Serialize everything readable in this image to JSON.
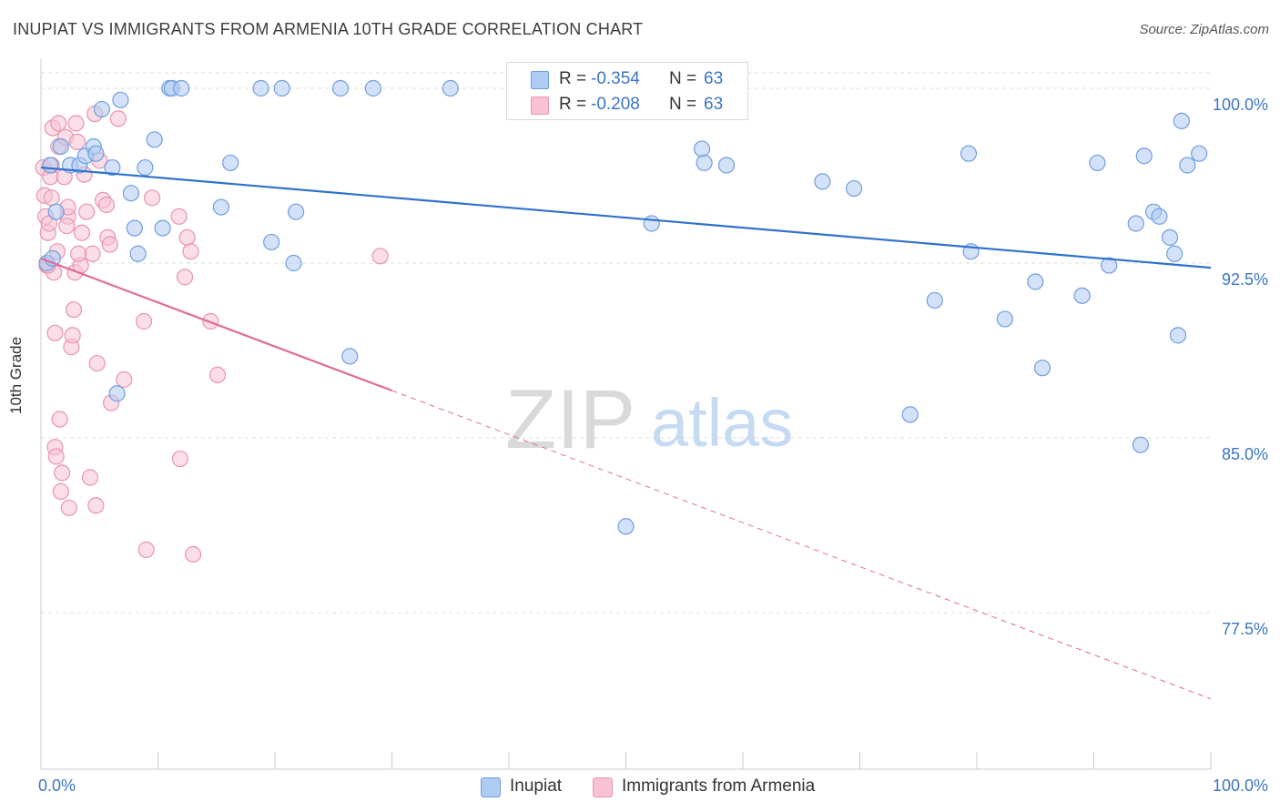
{
  "title": "INUPIAT VS IMMIGRANTS FROM ARMENIA 10TH GRADE CORRELATION CHART",
  "source": "Source: ZipAtlas.com",
  "watermark": {
    "zip": "ZIP",
    "atlas": "atlas"
  },
  "colors": {
    "blue_fill": "#aecbf3",
    "blue_stroke": "#6f9ee0",
    "blue_line": "#2f72cc",
    "pink_fill": "#f8c2d2",
    "pink_stroke": "#e894b0",
    "pink_line": "#e06a95",
    "axis_text": "#3a75c4",
    "grid": "#dddddd"
  },
  "stats": [
    {
      "r_label": "R =",
      "r_value": "-0.354",
      "n_label": "N =",
      "n_value": "63"
    },
    {
      "r_label": "R =",
      "r_value": "-0.208",
      "n_label": "N =",
      "n_value": "63"
    }
  ],
  "chart_data": {
    "type": "scatter",
    "title": "INUPIAT VS IMMIGRANTS FROM ARMENIA 10TH GRADE CORRELATION CHART",
    "xlabel": "",
    "ylabel": "10th Grade",
    "xlim": [
      0,
      100
    ],
    "ylim": [
      70,
      100.7
    ],
    "x_tick_labels": [
      "0.0%",
      "100.0%"
    ],
    "y_ticks": [
      77.5,
      85.0,
      92.5,
      100.0
    ],
    "y_tick_labels": [
      "77.5%",
      "85.0%",
      "92.5%",
      "100.0%"
    ],
    "grid": true,
    "legend_position": "bottom",
    "series": [
      {
        "name": "Inupiat",
        "trend": {
          "x": [
            0,
            100
          ],
          "y": [
            96.6,
            92.3
          ],
          "dashed_from": null
        },
        "points": [
          [
            0.5,
            92.5
          ],
          [
            0.8,
            96.7
          ],
          [
            1.3,
            94.7
          ],
          [
            1.7,
            97.5
          ],
          [
            2.5,
            96.7
          ],
          [
            3.3,
            96.7
          ],
          [
            3.8,
            97.1
          ],
          [
            4.5,
            97.5
          ],
          [
            4.7,
            97.2
          ],
          [
            5.2,
            99.1
          ],
          [
            6.1,
            96.6
          ],
          [
            6.5,
            86.9
          ],
          [
            6.8,
            99.5
          ],
          [
            7.7,
            95.5
          ],
          [
            8.0,
            94.0
          ],
          [
            8.3,
            92.9
          ],
          [
            8.9,
            96.6
          ],
          [
            9.7,
            97.8
          ],
          [
            10.4,
            94.0
          ],
          [
            11.0,
            100.0
          ],
          [
            11.2,
            100.0
          ],
          [
            16.2,
            96.8
          ],
          [
            15.4,
            94.9
          ],
          [
            18.8,
            100.0
          ],
          [
            19.7,
            93.4
          ],
          [
            20.6,
            100.0
          ],
          [
            21.6,
            92.5
          ],
          [
            21.8,
            94.7
          ],
          [
            25.6,
            100.0
          ],
          [
            26.4,
            88.5
          ],
          [
            28.4,
            100.0
          ],
          [
            35.0,
            100.0
          ],
          [
            47.3,
            100.0
          ],
          [
            50.0,
            81.2
          ],
          [
            52.2,
            94.2
          ],
          [
            56.5,
            97.4
          ],
          [
            56.7,
            96.8
          ],
          [
            58.6,
            96.7
          ],
          [
            66.8,
            96.0
          ],
          [
            69.5,
            95.7
          ],
          [
            74.3,
            86.0
          ],
          [
            76.4,
            90.9
          ],
          [
            79.3,
            97.2
          ],
          [
            79.5,
            93.0
          ],
          [
            82.4,
            90.1
          ],
          [
            85.0,
            91.7
          ],
          [
            85.6,
            88.0
          ],
          [
            89.0,
            91.1
          ],
          [
            90.3,
            96.8
          ],
          [
            91.3,
            92.4
          ],
          [
            93.6,
            94.2
          ],
          [
            94.0,
            84.7
          ],
          [
            94.3,
            97.1
          ],
          [
            95.1,
            94.7
          ],
          [
            95.6,
            94.5
          ],
          [
            96.5,
            93.6
          ],
          [
            96.9,
            92.9
          ],
          [
            97.2,
            89.4
          ],
          [
            97.5,
            98.6
          ],
          [
            98.0,
            96.7
          ],
          [
            99.0,
            97.2
          ],
          [
            1.0,
            92.7
          ],
          [
            12.0,
            100.0
          ]
        ]
      },
      {
        "name": "Immigrants from Armenia",
        "trend": {
          "x": [
            0,
            100
          ],
          "y": [
            92.7,
            73.8
          ],
          "dashed_from": 30
        },
        "points": [
          [
            0.2,
            96.6
          ],
          [
            0.3,
            95.4
          ],
          [
            0.4,
            94.5
          ],
          [
            0.5,
            92.4
          ],
          [
            0.6,
            93.8
          ],
          [
            0.7,
            94.2
          ],
          [
            0.8,
            96.2
          ],
          [
            0.9,
            95.3
          ],
          [
            1.0,
            98.3
          ],
          [
            1.1,
            92.1
          ],
          [
            1.2,
            84.6
          ],
          [
            1.2,
            89.5
          ],
          [
            1.4,
            93.0
          ],
          [
            1.5,
            97.5
          ],
          [
            1.5,
            98.5
          ],
          [
            1.6,
            85.8
          ],
          [
            1.7,
            82.7
          ],
          [
            1.8,
            83.5
          ],
          [
            2.0,
            96.2
          ],
          [
            2.1,
            97.9
          ],
          [
            2.3,
            94.5
          ],
          [
            2.3,
            94.9
          ],
          [
            2.4,
            82.0
          ],
          [
            2.6,
            88.9
          ],
          [
            2.7,
            89.4
          ],
          [
            2.8,
            90.5
          ],
          [
            2.9,
            92.1
          ],
          [
            3.0,
            98.5
          ],
          [
            3.1,
            97.7
          ],
          [
            3.4,
            92.4
          ],
          [
            3.5,
            93.8
          ],
          [
            3.7,
            96.3
          ],
          [
            3.9,
            94.7
          ],
          [
            4.2,
            83.3
          ],
          [
            4.4,
            92.9
          ],
          [
            4.6,
            98.9
          ],
          [
            4.7,
            82.1
          ],
          [
            4.8,
            88.2
          ],
          [
            5.0,
            96.9
          ],
          [
            5.3,
            95.2
          ],
          [
            5.6,
            95.0
          ],
          [
            5.7,
            93.6
          ],
          [
            5.9,
            93.3
          ],
          [
            6.0,
            86.5
          ],
          [
            7.1,
            87.5
          ],
          [
            8.8,
            90.0
          ],
          [
            9.0,
            80.2
          ],
          [
            9.5,
            95.3
          ],
          [
            11.8,
            94.5
          ],
          [
            11.9,
            84.1
          ],
          [
            12.3,
            91.9
          ],
          [
            12.5,
            93.6
          ],
          [
            12.8,
            93.0
          ],
          [
            13.0,
            80.0
          ],
          [
            14.5,
            90.0
          ],
          [
            15.1,
            87.7
          ],
          [
            29.0,
            92.8
          ],
          [
            0.6,
            92.4
          ],
          [
            0.9,
            96.7
          ],
          [
            2.2,
            94.1
          ],
          [
            1.3,
            84.2
          ],
          [
            3.2,
            92.9
          ],
          [
            6.6,
            98.7
          ]
        ]
      }
    ]
  },
  "legend": [
    {
      "label": "Inupiat"
    },
    {
      "label": "Immigrants from Armenia"
    }
  ]
}
